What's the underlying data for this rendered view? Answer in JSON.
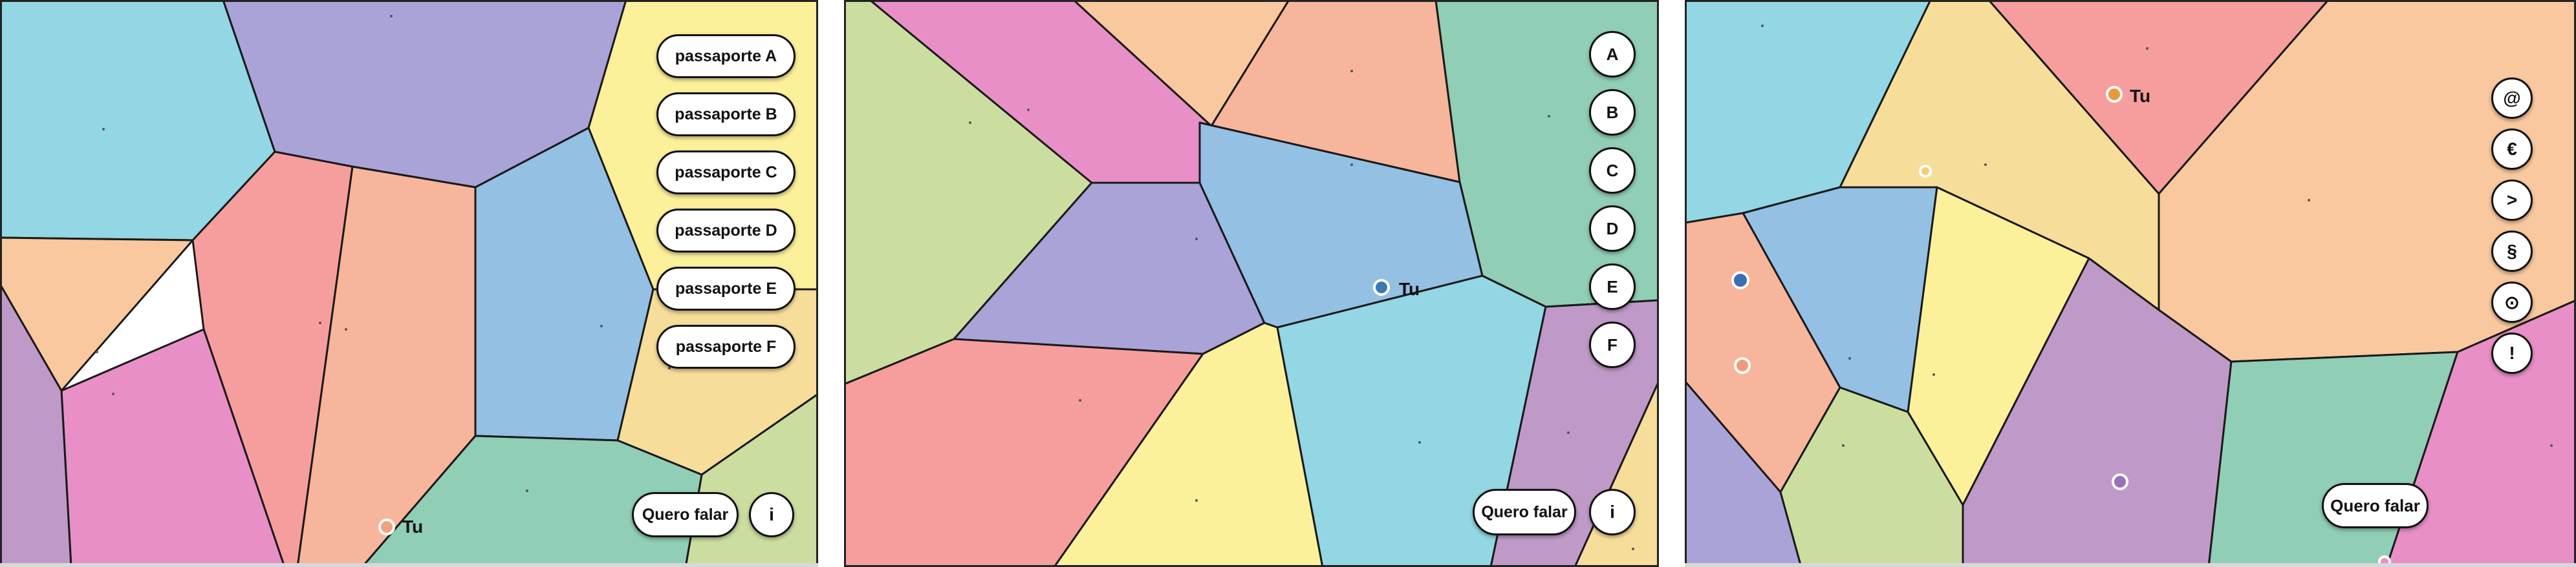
{
  "panel1": {
    "buttons": [
      "passaporte A",
      "passaporte B",
      "passaporte C",
      "passaporte D",
      "passaporte E",
      "passaporte F"
    ],
    "speak_label": "Quero falar",
    "info_label": "i",
    "you_label": "Tu",
    "you_marker_color": "#f2a27c"
  },
  "panel2": {
    "buttons": [
      "A",
      "B",
      "C",
      "D",
      "E",
      "F"
    ],
    "speak_label": "Quero falar",
    "info_label": "i",
    "you_label": "Tu",
    "you_marker_color": "#3a7ab0"
  },
  "panel3": {
    "buttons": [
      "@",
      "€",
      ">",
      "§",
      "⊙",
      "!"
    ],
    "speak_label": "Quero falar",
    "you_label": "Tu",
    "you_marker_color": "#e89a3a",
    "other_marker_colors": [
      "#f0d070",
      "#3a6fb0",
      "#f29b7c",
      "#9a70b8"
    ]
  },
  "colors": {
    "cyan": "#92d7e3",
    "lavender": "#a9a3d7",
    "yellow": "#fdf09a",
    "peach": "#f9c89e",
    "salmon": "#f7b59b",
    "red": "#f69e9e",
    "blue": "#94c0e4",
    "green": "#90ceb5",
    "pink": "#e98fc8",
    "lime": "#cbdea0",
    "tan": "#f7dd9a",
    "mauve": "#bf9ac8"
  }
}
